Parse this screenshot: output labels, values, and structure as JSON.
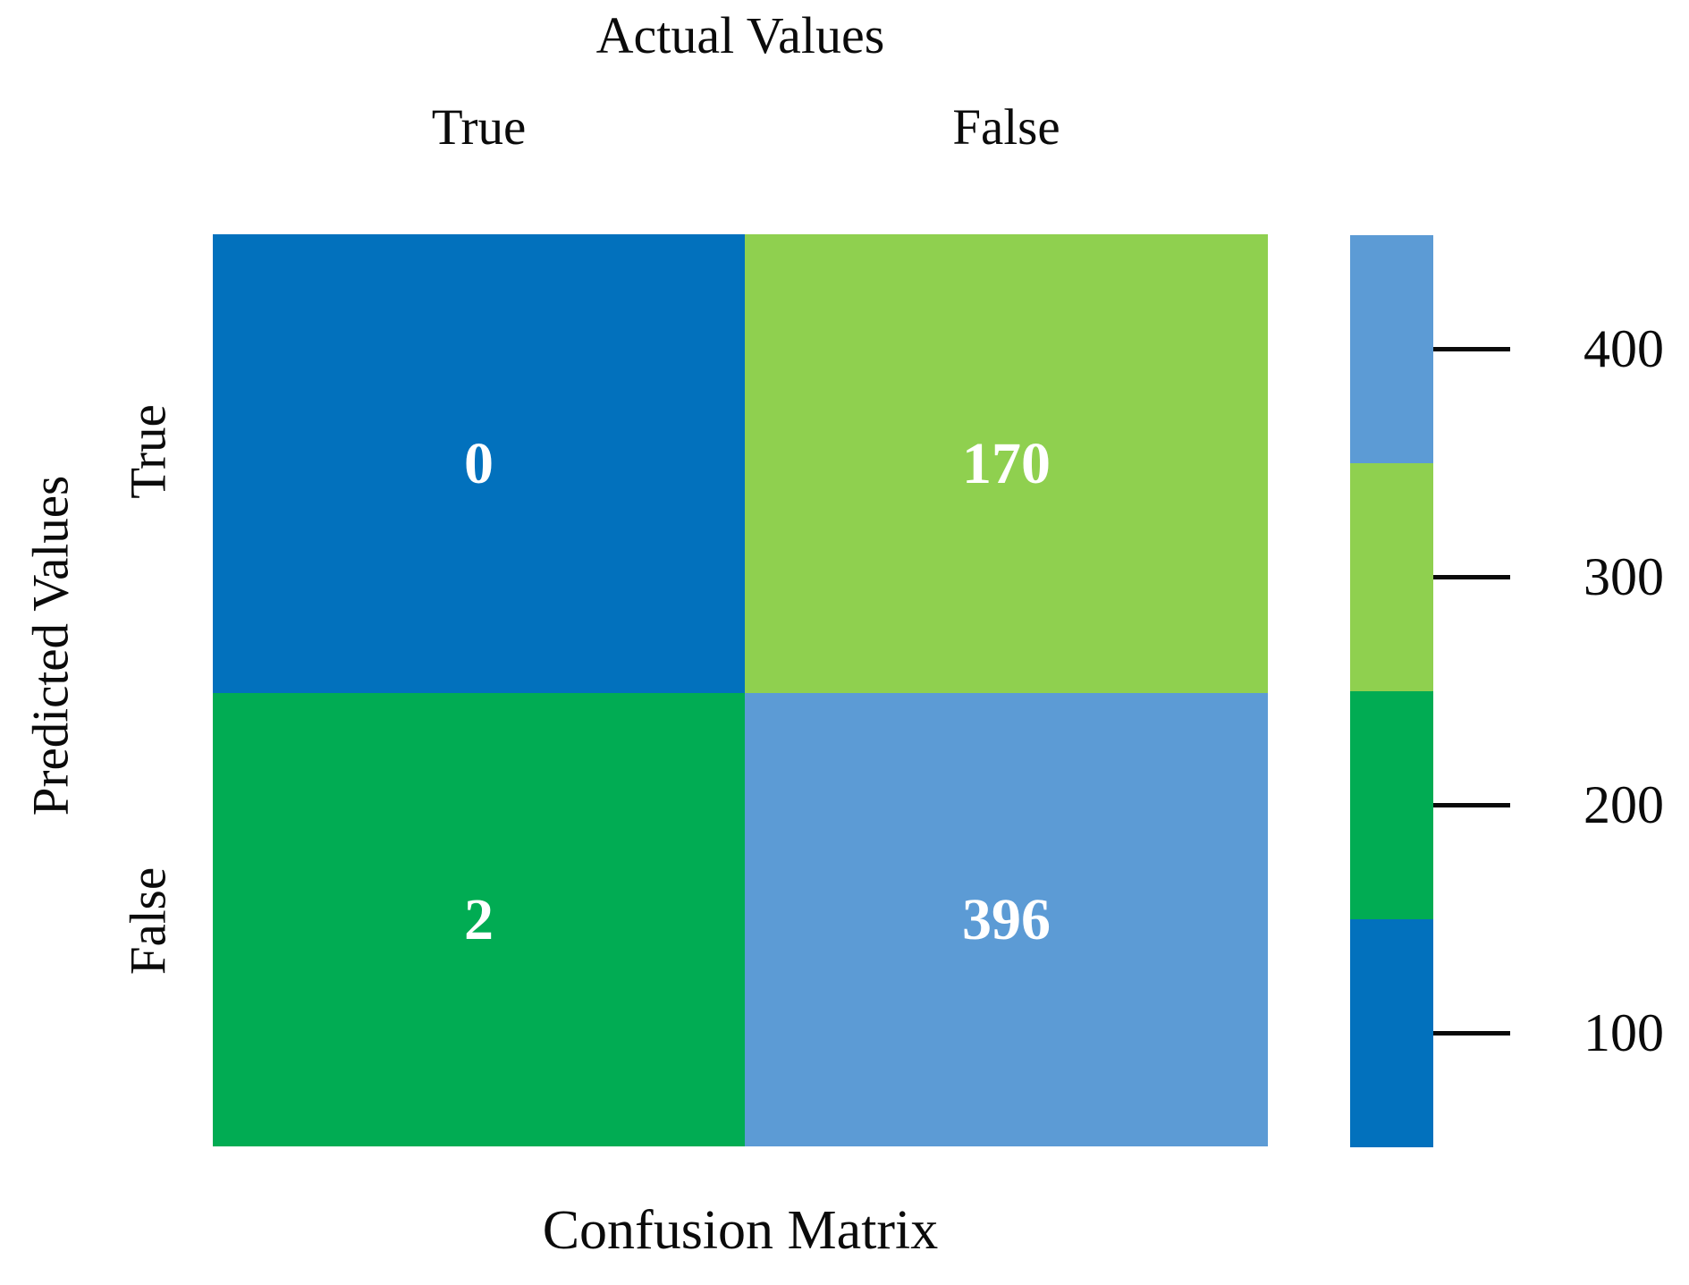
{
  "figure": {
    "top_axis_title": "Actual Values",
    "left_axis_title": "Predicted Values",
    "bottom_caption": "Confusion Matrix",
    "column_labels": [
      "True",
      "False"
    ],
    "row_labels": [
      "True",
      "False"
    ]
  },
  "matrix": {
    "cells": [
      {
        "row": "True",
        "col": "True",
        "value": "0",
        "color": "#0271BD"
      },
      {
        "row": "True",
        "col": "False",
        "value": "170",
        "color": "#8FD04F"
      },
      {
        "row": "False",
        "col": "True",
        "value": "2",
        "color": "#01AC53"
      },
      {
        "row": "False",
        "col": "False",
        "value": "396",
        "color": "#5C9BD5"
      }
    ],
    "value_text_color": "#FFFFFF"
  },
  "colorbar": {
    "orientation": "vertical",
    "segments": [
      {
        "tick_label": "400",
        "color": "#5C9BD5"
      },
      {
        "tick_label": "300",
        "color": "#8FD04F"
      },
      {
        "tick_label": "200",
        "color": "#01AC53"
      },
      {
        "tick_label": "100",
        "color": "#0271BD"
      }
    ]
  },
  "chart_data": {
    "type": "heatmap",
    "title": "Actual Values",
    "caption": "Confusion Matrix",
    "xlabel": "Actual Values",
    "ylabel": "Predicted Values",
    "x_categories": [
      "True",
      "False"
    ],
    "y_categories": [
      "True",
      "False"
    ],
    "values": [
      [
        0,
        170
      ],
      [
        2,
        396
      ]
    ],
    "cell_colors": [
      [
        "#0271BD",
        "#8FD04F"
      ],
      [
        "#01AC53",
        "#5C9BD5"
      ]
    ],
    "colorbar_ticks": [
      400,
      300,
      200,
      100
    ],
    "colorbar_band_colors_top_to_bottom": [
      "#5C9BD5",
      "#8FD04F",
      "#01AC53",
      "#0271BD"
    ],
    "legend_position": "right",
    "grid": false
  }
}
